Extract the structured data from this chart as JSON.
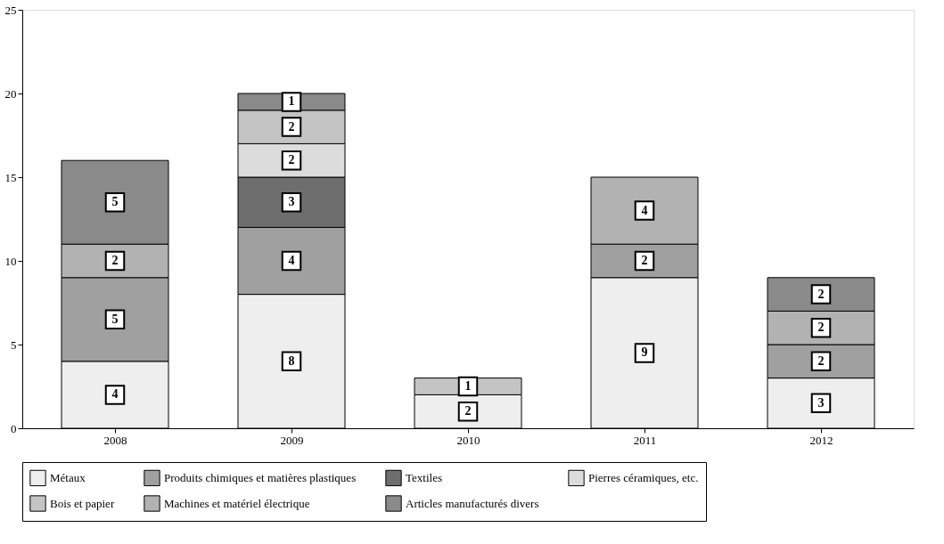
{
  "chart_data": {
    "type": "bar",
    "stacked": true,
    "categories": [
      "2008",
      "2009",
      "2010",
      "2011",
      "2012"
    ],
    "series": [
      {
        "name": "Métaux",
        "color": "#eeeeee",
        "values": [
          4,
          8,
          2,
          9,
          3
        ]
      },
      {
        "name": "Produits chimiques et matières plastiques",
        "color": "#a0a0a0",
        "values": [
          5,
          4,
          null,
          2,
          2
        ]
      },
      {
        "name": "Textiles",
        "color": "#6e6e6e",
        "values": [
          null,
          3,
          null,
          null,
          null
        ]
      },
      {
        "name": "Pierres céramiques, etc.",
        "color": "#dcdcdc",
        "values": [
          null,
          2,
          null,
          null,
          null
        ]
      },
      {
        "name": "Bois et papier",
        "color": "#c4c4c4",
        "values": [
          null,
          2,
          1,
          null,
          null
        ]
      },
      {
        "name": "Machines et matériel électrique",
        "color": "#b2b2b2",
        "values": [
          2,
          null,
          null,
          4,
          2
        ]
      },
      {
        "name": "Articles manufacturés divers",
        "color": "#8a8a8a",
        "values": [
          5,
          1,
          null,
          null,
          2
        ]
      }
    ],
    "ylim": [
      0,
      25
    ],
    "yticks": [
      0,
      5,
      10,
      15,
      20,
      25
    ],
    "grid": false,
    "legend": "bottom",
    "data_labels": true
  }
}
